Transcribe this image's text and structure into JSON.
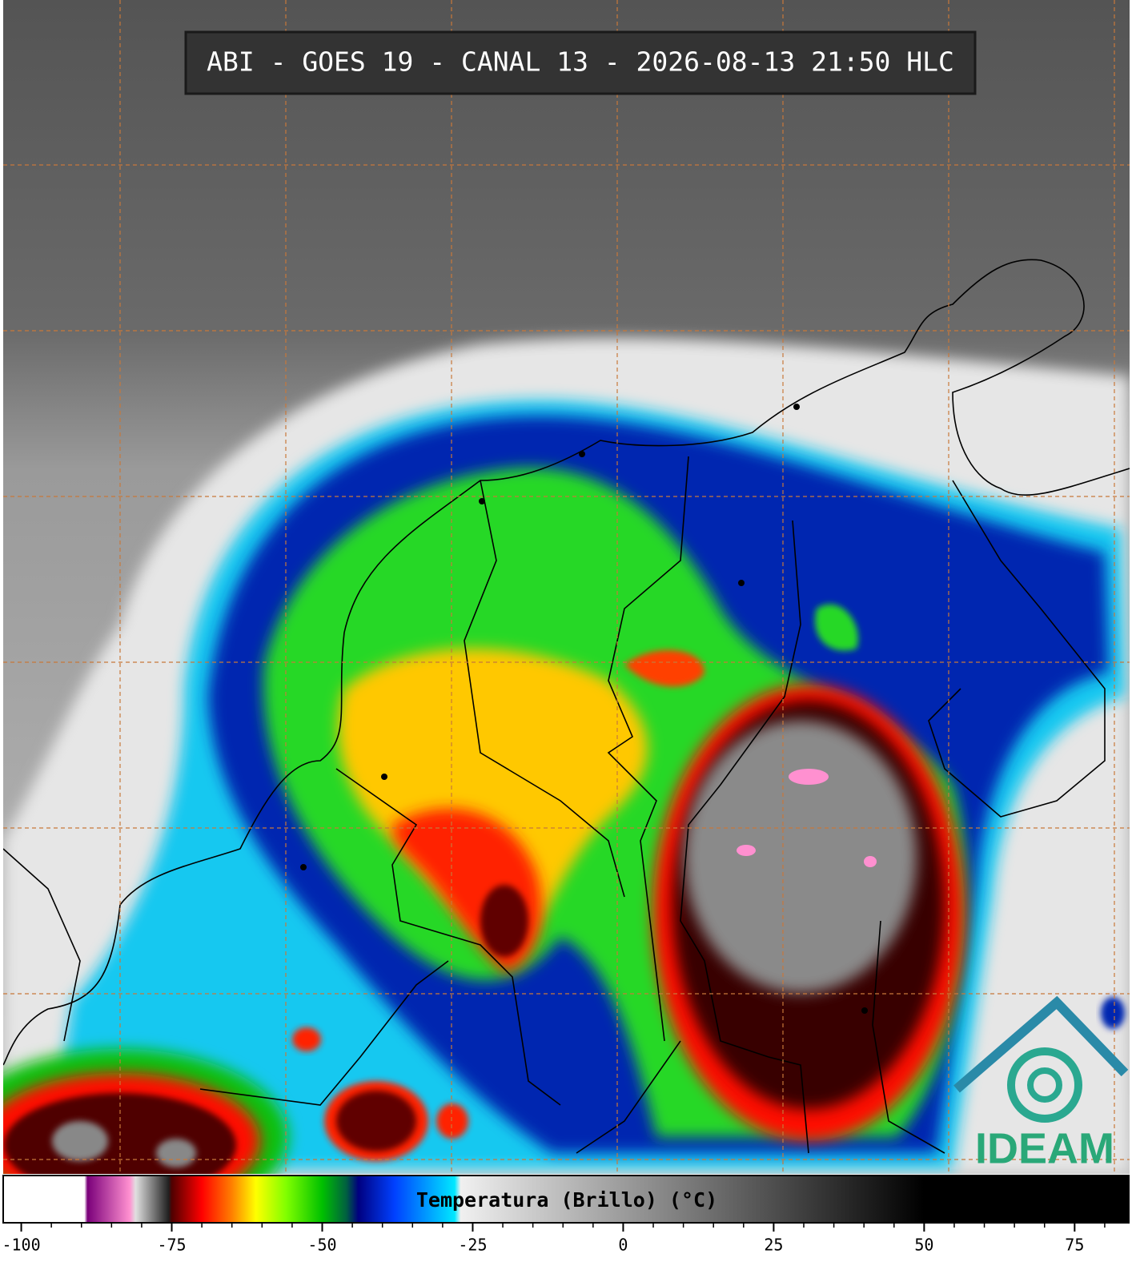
{
  "header": {
    "title": "ABI - GOES 19 - CANAL 13 - 2026-08-13 21:50 HLC"
  },
  "logo": {
    "text": "IDEAM"
  },
  "chart_data": {
    "type": "colorbar",
    "title": "Temperatura (Brillo) (°C)",
    "xlim": [
      -103,
      84
    ],
    "xticks": [
      -100,
      -75,
      -50,
      -25,
      0,
      25,
      50,
      75
    ],
    "minor_xticks": [
      -95,
      -90,
      -85,
      -80,
      -70,
      -65,
      -60,
      -55,
      -45,
      -40,
      -35,
      -30,
      -20,
      -15,
      -10,
      -5,
      5,
      10,
      15,
      20,
      30,
      35,
      40,
      45,
      55,
      60,
      65,
      70,
      80
    ],
    "colormap": [
      {
        "value": -103,
        "color": "#ffffff"
      },
      {
        "value": -89.5,
        "color": "#ffffff"
      },
      {
        "value": -89,
        "color": "#7a007a"
      },
      {
        "value": -82,
        "color": "#ff90d0"
      },
      {
        "value": -81,
        "color": "#e0e0e0"
      },
      {
        "value": -75.5,
        "color": "#202020"
      },
      {
        "value": -75,
        "color": "#500000"
      },
      {
        "value": -70,
        "color": "#ff0000"
      },
      {
        "value": -65,
        "color": "#ff8000"
      },
      {
        "value": -61,
        "color": "#ffff00"
      },
      {
        "value": -56,
        "color": "#80ff00"
      },
      {
        "value": -50,
        "color": "#00c000"
      },
      {
        "value": -46,
        "color": "#006040"
      },
      {
        "value": -44,
        "color": "#000080"
      },
      {
        "value": -38,
        "color": "#0040ff"
      },
      {
        "value": -28,
        "color": "#00e8ff"
      },
      {
        "value": -27,
        "color": "#f0f0f0"
      },
      {
        "value": 50,
        "color": "#000000"
      },
      {
        "value": 84,
        "color": "#000000"
      }
    ]
  }
}
